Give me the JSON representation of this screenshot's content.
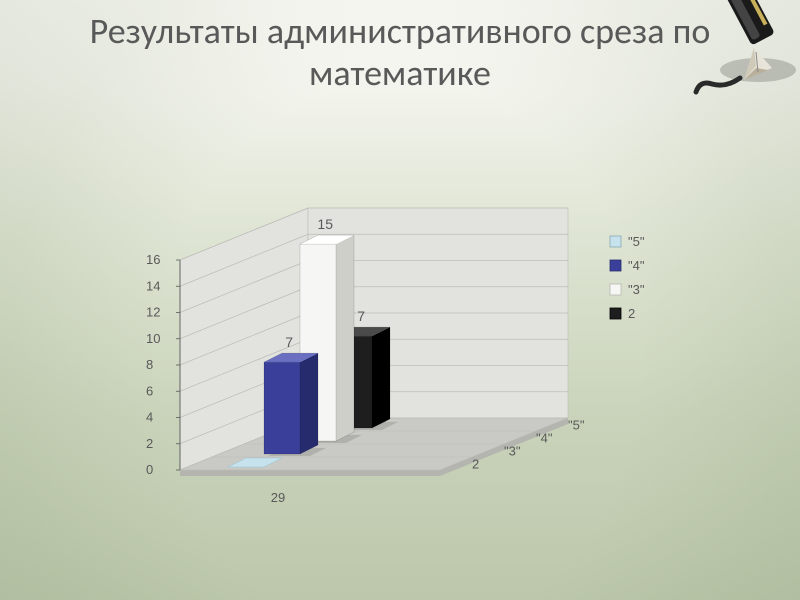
{
  "title": "Результаты административного среза по математике",
  "chart": {
    "type": "3d-bar",
    "series": [
      {
        "name": "\"5\"",
        "value": 0,
        "value_label": "",
        "color": "#c5e2ed",
        "shade": "#a0c6d4",
        "light": "#dceff6"
      },
      {
        "name": "\"4\"",
        "value": 7,
        "value_label": "7",
        "color": "#3a3f99",
        "shade": "#262b6e",
        "light": "#6a6fc2"
      },
      {
        "name": "\"3\"",
        "value": 15,
        "value_label": "15",
        "color": "#f6f6f4",
        "shade": "#cfcfca",
        "light": "#ffffff"
      },
      {
        "name": "2",
        "value": 7,
        "value_label": "7",
        "color": "#1e1e1e",
        "shade": "#000000",
        "light": "#4a4a4a"
      }
    ],
    "x_category": "29",
    "y": {
      "min": 0,
      "max": 16,
      "step": 2,
      "ticks": [
        0,
        2,
        4,
        6,
        8,
        10,
        12,
        14,
        16
      ]
    },
    "floor_color": "#c9c9c5",
    "floor_shade": "#b5b5b0",
    "wall_color": "#e2e2de",
    "grid_color": "#bdbdb8",
    "axis_font_color": "#595959",
    "legend": {
      "items": [
        {
          "label": "\"5\"",
          "swatch": "#c5e2ed",
          "border": "#8aa8b3"
        },
        {
          "label": "\"4\"",
          "swatch": "#3a3f99",
          "border": "#2a2d6e"
        },
        {
          "label": "\"3\"",
          "swatch": "#f6f6f4",
          "border": "#b8b8b2"
        },
        {
          "label": "2",
          "swatch": "#1e1e1e",
          "border": "#000000"
        }
      ]
    }
  }
}
